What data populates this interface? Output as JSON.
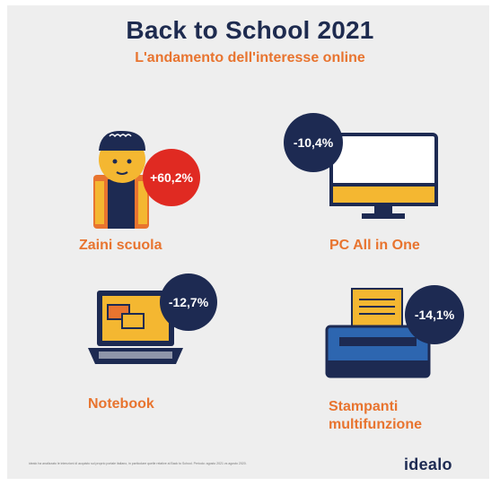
{
  "title": "Back to School 2021",
  "subtitle": "L'andamento dell'interesse online",
  "items": [
    {
      "label": "Zaini scuola",
      "change": "+60,2%",
      "badge_color": "#e02a22"
    },
    {
      "label": "PC All in One",
      "change": "-10,4%",
      "badge_color": "#1d2a52"
    },
    {
      "label": "Notebook",
      "change": "-12,7%",
      "badge_color": "#1d2a52"
    },
    {
      "label_lines": [
        "Stampanti",
        "multifunzione"
      ],
      "change": "-14,1%",
      "badge_color": "#1d2a52"
    }
  ],
  "footnote": "idealo ha analizzato le intenzioni di acquisto sul proprio portale italiano, in particolare quelle relative al Back to School. Periodo: agosto 2021 vs agosto 2020.",
  "brand": "idealo",
  "colors": {
    "navy": "#1d2a52",
    "orange": "#e8742f",
    "red": "#e02a22",
    "yellow": "#f4b731"
  }
}
